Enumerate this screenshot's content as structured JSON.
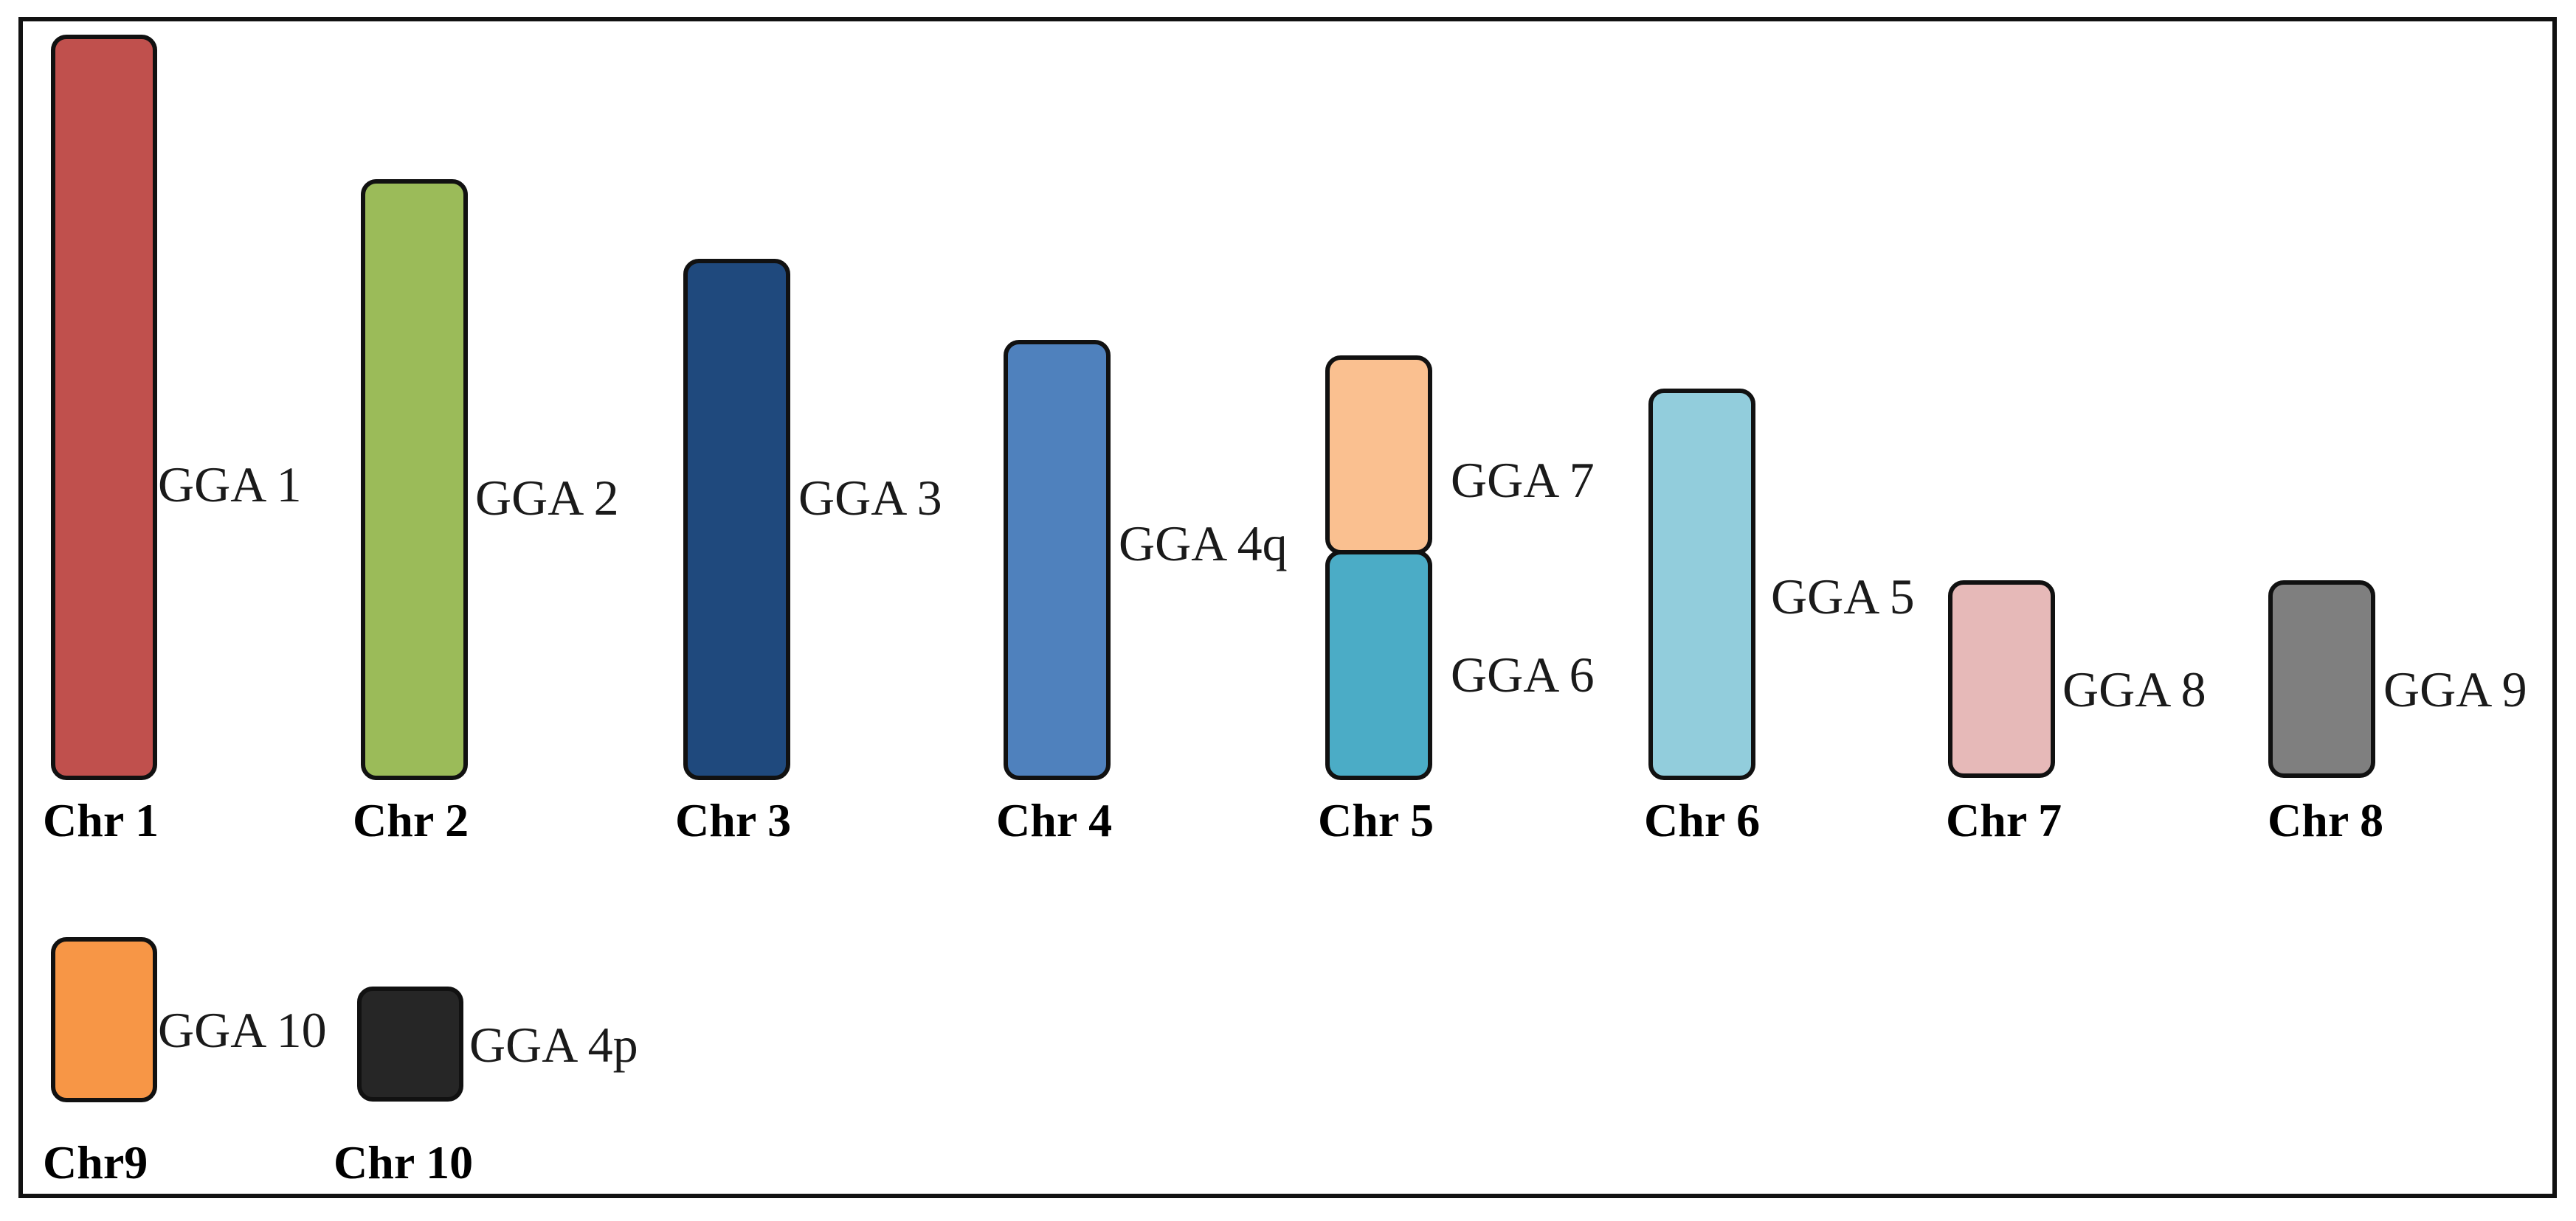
{
  "diagram": {
    "chromosomes": [
      {
        "label": "Chr 1",
        "segments": [
          {
            "name": "GGA 1",
            "color": "#c0504d"
          }
        ]
      },
      {
        "label": "Chr 2",
        "segments": [
          {
            "name": "GGA 2",
            "color": "#9bbb59"
          }
        ]
      },
      {
        "label": "Chr 3",
        "segments": [
          {
            "name": "GGA 3",
            "color": "#1f497d"
          }
        ]
      },
      {
        "label": "Chr 4",
        "segments": [
          {
            "name": "GGA 4q",
            "color": "#4f81bd"
          }
        ]
      },
      {
        "label": "Chr 5",
        "segments": [
          {
            "name": "GGA 7",
            "color": "#fac090"
          },
          {
            "name": "GGA 6",
            "color": "#4bacc6"
          }
        ]
      },
      {
        "label": "Chr 6",
        "segments": [
          {
            "name": "GGA 5",
            "color": "#92cddc"
          }
        ]
      },
      {
        "label": "Chr 7",
        "segments": [
          {
            "name": "GGA 8",
            "color": "#e6b9b8"
          }
        ]
      },
      {
        "label": "Chr 8",
        "segments": [
          {
            "name": "GGA 9",
            "color": "#7f7f7f"
          }
        ]
      },
      {
        "label": "Chr9",
        "segments": [
          {
            "name": "GGA 10",
            "color": "#f79646"
          }
        ]
      },
      {
        "label": "Chr 10",
        "segments": [
          {
            "name": "GGA 4p",
            "color": "#262626"
          }
        ]
      }
    ]
  }
}
